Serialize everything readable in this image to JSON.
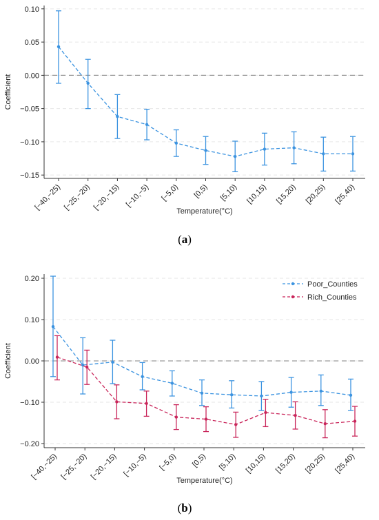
{
  "chart_data": [
    {
      "type": "line",
      "panel_caption": "a",
      "x_tick_labels": [
        "[−40,−25)",
        "[−25,−20)",
        "[−20,−15)",
        "[−10,−5)",
        "[−5,0)",
        "[0,5)",
        "[5,10)",
        "[10,15)",
        "[15,20)",
        "[20,25)",
        "[25,40)"
      ],
      "categories": [
        "[−40,−25)",
        "[−25,−20)",
        "[−20,−15)",
        "[−10,−5)",
        "[−5,0)",
        "[0,5)",
        "[5,10)",
        "[10,15)",
        "[15,20)",
        "[20,25)",
        "[25,40)"
      ],
      "xlabel": "Temperature(°C)",
      "ylabel": "Coefficient",
      "ylim": [
        -0.155,
        0.105
      ],
      "yticks": [
        0.1,
        0.05,
        0.0,
        -0.05,
        -0.1,
        -0.15
      ],
      "ytick_labels": [
        "0.10",
        "0.05",
        "0.00",
        "−0.05",
        "−0.10",
        "−0.15"
      ],
      "reference_line": 0,
      "grid": "horizontal dashed",
      "series": [
        {
          "color": "#3b93e0",
          "values": [
            0.043,
            -0.012,
            -0.062,
            -0.074,
            -0.102,
            -0.113,
            -0.122,
            -0.111,
            -0.109,
            -0.118,
            -0.118
          ],
          "ci_low": [
            -0.012,
            -0.05,
            -0.095,
            -0.097,
            -0.122,
            -0.134,
            -0.145,
            -0.135,
            -0.133,
            -0.144,
            -0.144
          ],
          "ci_high": [
            0.097,
            0.024,
            -0.029,
            -0.051,
            -0.082,
            -0.092,
            -0.099,
            -0.087,
            -0.085,
            -0.093,
            -0.092
          ]
        }
      ]
    },
    {
      "type": "line",
      "panel_caption": "b",
      "x_tick_labels": [
        "[−40,−25)",
        "[−25,−20)",
        "[−20,−15)",
        "[−10,−5)",
        "[−5,0)",
        "[0,5)",
        "[5,10)",
        "[10,15)",
        "[15,20)",
        "[20,25)",
        "[25,40)"
      ],
      "categories": [
        "[−40,−25)",
        "[−25,−20)",
        "[−20,−15)",
        "[−10,−5)",
        "[−5,0)",
        "[0,5)",
        "[5,10)",
        "[10,15)",
        "[15,20)",
        "[20,25)",
        "[25,40)"
      ],
      "xlabel": "Temperature(°C)",
      "ylabel": "Coefficient",
      "ylim": [
        -0.21,
        0.21
      ],
      "yticks": [
        0.2,
        0.1,
        0.0,
        -0.1,
        -0.2
      ],
      "ytick_labels": [
        "0.20",
        "0.10",
        "0.00",
        "−0.10",
        "−0.20"
      ],
      "reference_line": 0,
      "grid": "horizontal dashed",
      "legend_position": "top-right",
      "series": [
        {
          "name": "Poor_Counties",
          "color": "#3b93e0",
          "values": [
            0.083,
            -0.01,
            -0.003,
            -0.038,
            -0.054,
            -0.078,
            -0.082,
            -0.085,
            -0.076,
            -0.073,
            -0.083
          ],
          "ci_low": [
            -0.038,
            -0.08,
            -0.055,
            -0.07,
            -0.085,
            -0.108,
            -0.114,
            -0.12,
            -0.112,
            -0.108,
            -0.12
          ],
          "ci_high": [
            0.205,
            0.056,
            0.05,
            -0.004,
            -0.024,
            -0.046,
            -0.048,
            -0.05,
            -0.04,
            -0.034,
            -0.044
          ]
        },
        {
          "name": "Rich_Counties",
          "color": "#c9255a",
          "values": [
            0.009,
            -0.015,
            -0.099,
            -0.103,
            -0.136,
            -0.141,
            -0.154,
            -0.125,
            -0.132,
            -0.152,
            -0.146
          ],
          "ci_low": [
            -0.046,
            -0.057,
            -0.14,
            -0.134,
            -0.166,
            -0.171,
            -0.185,
            -0.159,
            -0.165,
            -0.186,
            -0.182
          ],
          "ci_high": [
            0.061,
            0.026,
            -0.058,
            -0.073,
            -0.106,
            -0.111,
            -0.124,
            -0.093,
            -0.099,
            -0.118,
            -0.11
          ]
        }
      ]
    }
  ]
}
